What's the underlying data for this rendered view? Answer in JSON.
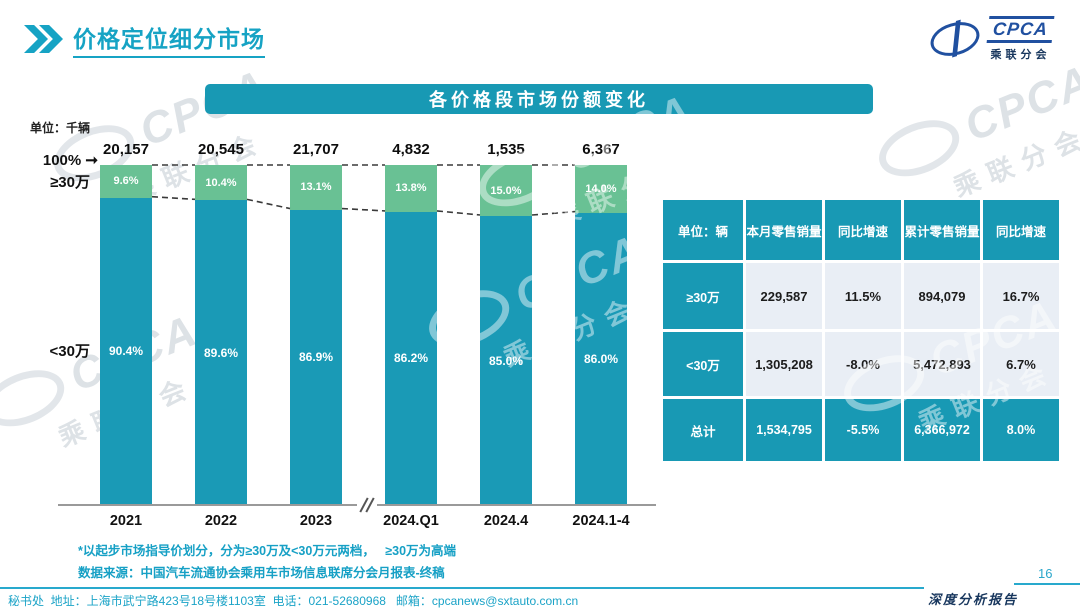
{
  "header": {
    "title": "价格定位细分市场",
    "logo": {
      "abbr": "CPCA",
      "cn": "乘联分会"
    }
  },
  "banner": "各价格段市场份额变化",
  "chart_data": {
    "type": "bar",
    "variant": "100-percent-stacked-column",
    "title": "各价格段市场份额变化",
    "unit": "单位：千辆",
    "categories": [
      "2021",
      "2022",
      "2023",
      "2024.Q1",
      "2024.4",
      "2024.1-4"
    ],
    "totals": [
      "20,157",
      "20,545",
      "21,707",
      "4,832",
      "1,535",
      "6,367"
    ],
    "series": [
      {
        "name": "≥30万",
        "color": "#69c194",
        "values": [
          9.6,
          10.4,
          13.1,
          13.8,
          15.0,
          14.0
        ]
      },
      {
        "name": "<30万",
        "color": "#1a9ab6",
        "values": [
          90.4,
          89.6,
          86.9,
          86.2,
          85.0,
          86.0
        ]
      }
    ],
    "ylim": [
      0,
      100
    ],
    "legend": "none",
    "grid": false,
    "annotations": {
      "top_axis": "100%",
      "upper_segment": "≥30万",
      "lower_segment": "<30万",
      "axis_break_between": [
        "2023",
        "2024.Q1"
      ]
    }
  },
  "table": {
    "headers": [
      "单位：辆",
      "本月零售销量",
      "同比增速",
      "累计零售销量",
      "同比增速"
    ],
    "rows": [
      {
        "label": "≥30万",
        "cells": [
          "229,587",
          "11.5%",
          "894,079",
          "16.7%"
        ],
        "highlight": false
      },
      {
        "label": "<30万",
        "cells": [
          "1,305,208",
          "-8.0%",
          "5,472,893",
          "6.7%"
        ],
        "highlight": false
      },
      {
        "label": "总计",
        "cells": [
          "1,534,795",
          "-5.5%",
          "6,366,972",
          "8.0%"
        ],
        "highlight": true
      }
    ]
  },
  "footnotes": [
    "*以起步市场指导价划分，分为≥30万及<30万元两档，   ≥30万为高端",
    "数据来源：中国汽车流通协会乘用车市场信息联席分会月报表-终稿"
  ],
  "footer": {
    "left": "秘书处  地址：上海市武宁路423号18号楼1103室  电话：021-52680968   邮箱：cpcanews@sxtauto.com.cn",
    "report_label": "深度分析报告",
    "page": "16"
  },
  "watermark": {
    "abbr": "CPCA",
    "cn": "乘联分会"
  },
  "colors": {
    "teal": "#1a9ab6",
    "green": "#69c194",
    "accent_text": "#16a3c4",
    "navy": "#17365d",
    "table_cell_bg": "#e9eef5"
  }
}
